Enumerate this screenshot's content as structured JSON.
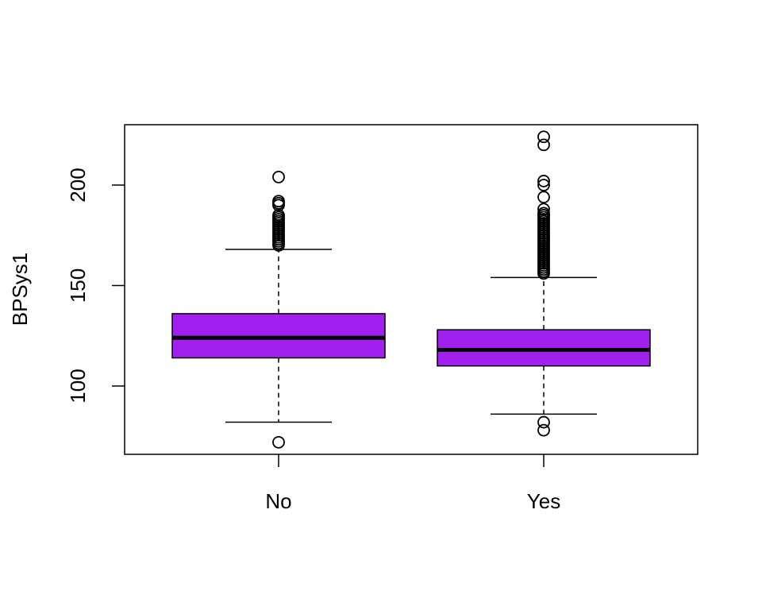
{
  "chart_data": {
    "type": "boxplot",
    "title": "",
    "xlabel": "",
    "ylabel": "BPSys1",
    "ylim": [
      66,
      230
    ],
    "y_ticks": [
      100,
      150,
      200
    ],
    "categories": [
      "No",
      "Yes"
    ],
    "box_color": "#A020F0",
    "series": [
      {
        "name": "No",
        "lower_whisker": 82,
        "q1": 114,
        "median": 124,
        "q3": 136,
        "upper_whisker": 168,
        "outliers": [
          72,
          170,
          171,
          172,
          173,
          174,
          175,
          176,
          177,
          178,
          179,
          180,
          181,
          182,
          183,
          184,
          185,
          190,
          191,
          192,
          204
        ]
      },
      {
        "name": "Yes",
        "lower_whisker": 86,
        "q1": 110,
        "median": 118,
        "q3": 128,
        "upper_whisker": 154,
        "outliers": [
          78,
          82,
          156,
          157,
          158,
          159,
          160,
          161,
          162,
          163,
          164,
          165,
          166,
          167,
          168,
          169,
          170,
          171,
          172,
          173,
          174,
          175,
          176,
          177,
          178,
          179,
          180,
          181,
          182,
          183,
          184,
          185,
          186,
          188,
          194,
          200,
          202,
          220,
          224
        ]
      }
    ],
    "grid": false,
    "legend": "none"
  }
}
